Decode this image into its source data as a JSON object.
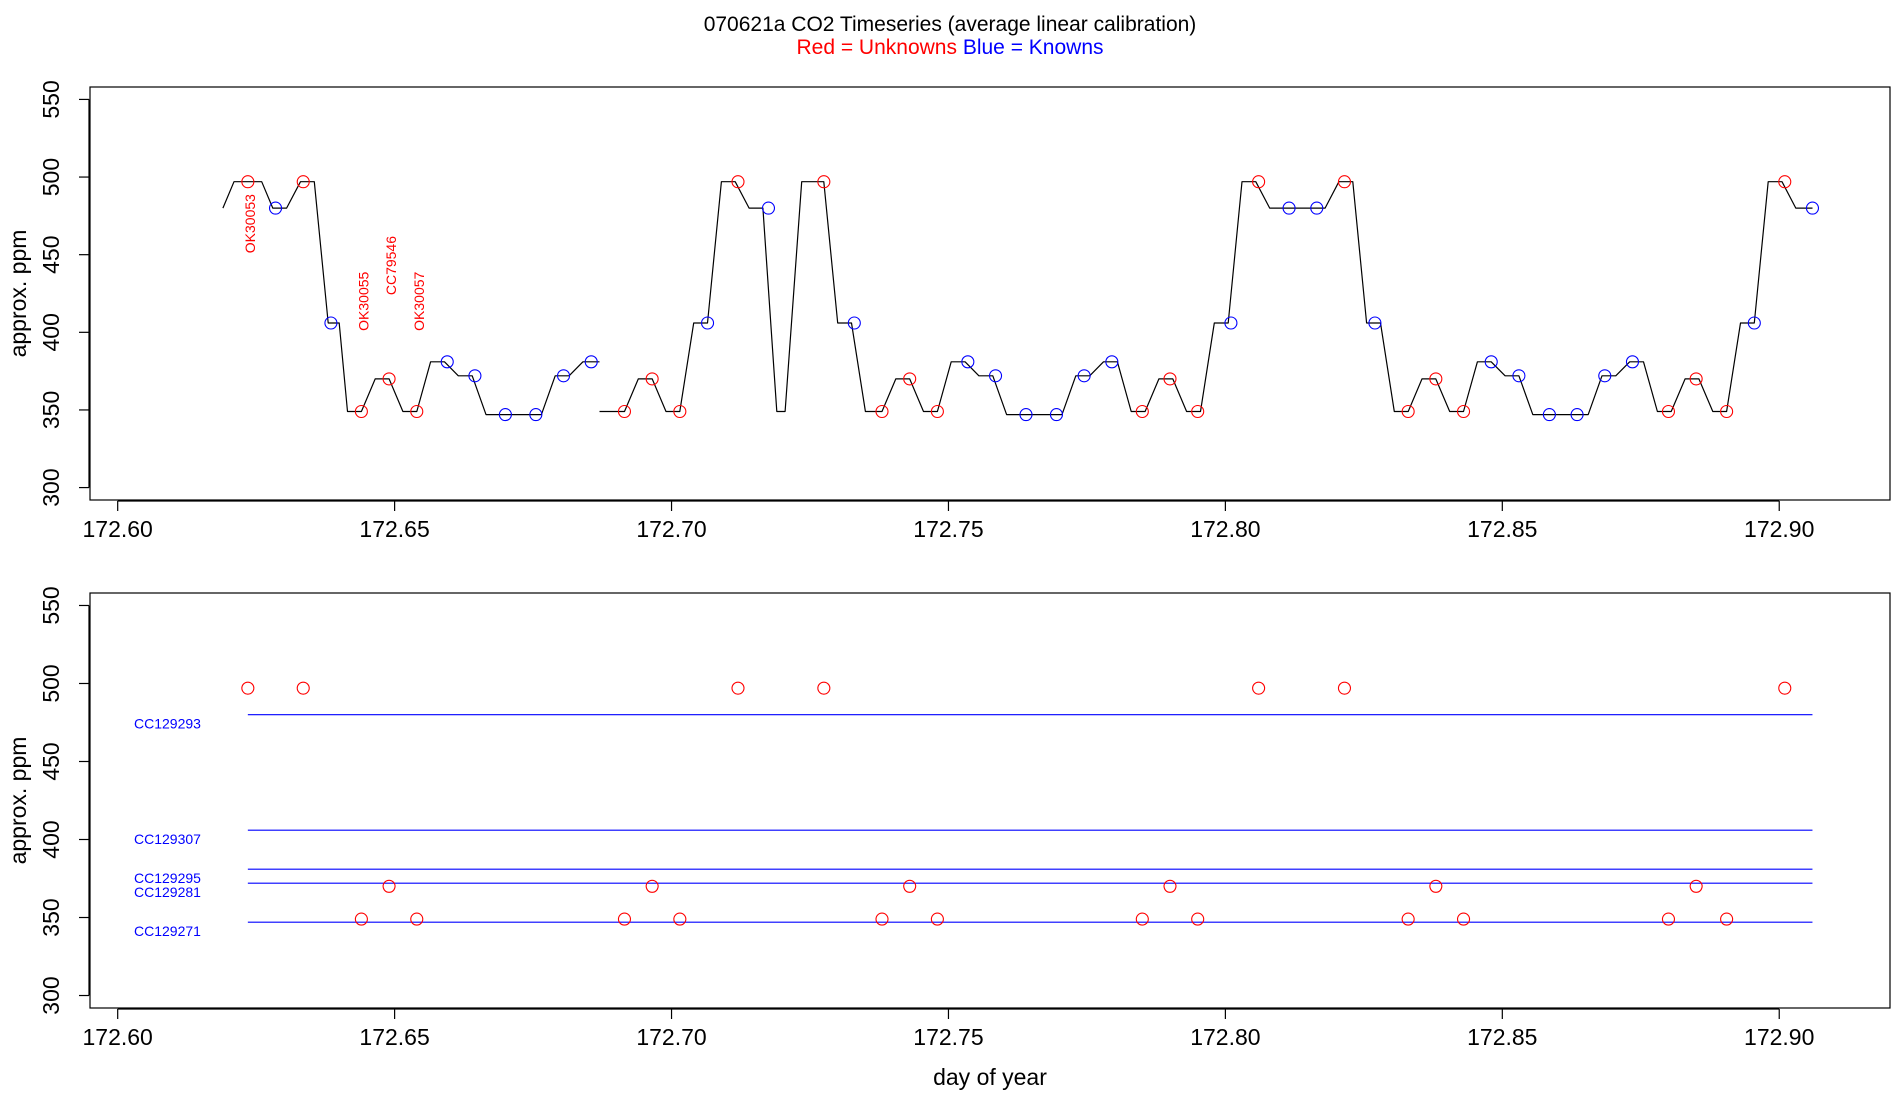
{
  "header": {
    "title": "070621a   CO2 Timeseries (average linear calibration)",
    "legend_red": "Red = Unknowns",
    "legend_blue": "Blue = Knowns"
  },
  "colors": {
    "unknown": "#ff0000",
    "known": "#0000ff",
    "trace": "#000000"
  },
  "chart_data": [
    {
      "type": "line",
      "ylabel": "approx. ppm",
      "xlabel": "",
      "xlim": [
        172.595,
        172.92
      ],
      "ylim": [
        292,
        558
      ],
      "x_ticks": [
        172.6,
        172.65,
        172.7,
        172.75,
        172.8,
        172.85,
        172.9
      ],
      "x_tick_labels": [
        "172.60",
        "172.65",
        "172.70",
        "172.75",
        "172.80",
        "172.85",
        "172.90"
      ],
      "y_ticks": [
        300,
        350,
        400,
        450,
        500,
        550
      ],
      "y_tick_labels": [
        "300",
        "350",
        "400",
        "450",
        "500",
        "550"
      ],
      "series": [
        {
          "kind": "trace",
          "x": [
            172.619,
            172.621,
            172.623,
            172.626,
            172.628,
            172.6305,
            172.633,
            172.6355,
            172.638,
            172.64,
            172.6415,
            172.644,
            172.6465,
            172.649,
            172.6515,
            172.654,
            172.6565,
            172.659,
            172.6615,
            172.664,
            172.6665,
            172.669,
            172.6715,
            172.6765,
            172.679,
            172.6815,
            172.684,
            172.687
          ],
          "y": [
            480,
            497,
            497,
            497,
            480,
            480,
            497,
            497,
            406,
            406,
            349,
            349,
            370,
            370,
            349,
            349,
            381,
            381,
            372,
            372,
            347,
            347,
            347,
            347,
            372,
            372,
            381,
            381
          ]
        },
        {
          "kind": "trace",
          "x": [
            172.687,
            172.689,
            172.6915,
            172.694,
            172.6965,
            172.699,
            172.7015,
            172.704,
            172.7065,
            172.709,
            172.7115,
            172.714,
            172.7165,
            172.719,
            172.7205,
            172.7235,
            172.725,
            172.7275,
            172.73,
            172.7325,
            172.735,
            172.738,
            172.7405,
            172.743,
            172.7455,
            172.748,
            172.7505,
            172.753,
            172.7555,
            172.758,
            172.7605,
            172.763,
            172.7655,
            172.7705,
            172.773,
            172.7755,
            172.778,
            172.7805,
            172.783,
            172.7855,
            172.788,
            172.7905,
            172.793,
            172.7955,
            172.798,
            172.8005,
            172.803,
            172.8055,
            172.808,
            172.8105,
            172.8155,
            172.818,
            172.8205,
            172.823,
            172.8255,
            172.828,
            172.8305,
            172.833,
            172.8355,
            172.838,
            172.8405,
            172.843,
            172.8455,
            172.848,
            172.8505,
            172.853,
            172.8555,
            172.858,
            172.8605,
            172.8655,
            172.868,
            172.8705,
            172.873,
            172.8755,
            172.878,
            172.8805,
            172.883,
            172.8855,
            172.888,
            172.8905,
            172.893,
            172.8955,
            172.898,
            172.9005,
            172.903,
            172.906
          ],
          "y": [
            349,
            349,
            349,
            370,
            370,
            349,
            349,
            406,
            406,
            497,
            497,
            480,
            480,
            349,
            349,
            497,
            497,
            497,
            406,
            406,
            349,
            349,
            370,
            370,
            349,
            349,
            381,
            381,
            372,
            372,
            347,
            347,
            347,
            347,
            372,
            372,
            381,
            381,
            349,
            349,
            370,
            370,
            349,
            349,
            406,
            406,
            497,
            497,
            480,
            480,
            480,
            480,
            497,
            497,
            406,
            406,
            349,
            349,
            370,
            370,
            349,
            349,
            381,
            381,
            372,
            372,
            347,
            347,
            347,
            347,
            372,
            372,
            381,
            381,
            349,
            349,
            370,
            370,
            349,
            349,
            406,
            406,
            497,
            497,
            480,
            480
          ]
        },
        {
          "kind": "unknown_points",
          "x": [
            172.6235,
            172.6335,
            172.644,
            172.649,
            172.654,
            172.6915,
            172.6965,
            172.7015,
            172.712,
            172.7275,
            172.738,
            172.743,
            172.748,
            172.785,
            172.79,
            172.795,
            172.806,
            172.8215,
            172.833,
            172.838,
            172.843,
            172.88,
            172.885,
            172.8905,
            172.901
          ],
          "y": [
            497,
            497,
            349,
            370,
            349,
            349,
            370,
            349,
            497,
            497,
            349,
            370,
            349,
            349,
            370,
            349,
            497,
            497,
            349,
            370,
            349,
            349,
            370,
            349,
            497
          ]
        },
        {
          "kind": "known_points",
          "x": [
            172.6285,
            172.6385,
            172.6595,
            172.6645,
            172.67,
            172.6755,
            172.6805,
            172.6855,
            172.7065,
            172.7175,
            172.733,
            172.7535,
            172.7585,
            172.764,
            172.7695,
            172.7745,
            172.7795,
            172.801,
            172.8115,
            172.8165,
            172.827,
            172.848,
            172.853,
            172.8585,
            172.8635,
            172.8685,
            172.8735,
            172.8955,
            172.906
          ],
          "y": [
            480,
            406,
            381,
            372,
            347,
            347,
            372,
            381,
            406,
            480,
            406,
            381,
            372,
            347,
            347,
            372,
            381,
            406,
            480,
            480,
            406,
            381,
            372,
            347,
            347,
            372,
            381,
            406,
            480
          ]
        }
      ],
      "annotations": [
        {
          "text": "OK30053",
          "x": 172.6235,
          "y": 470
        },
        {
          "text": "OK30055",
          "x": 172.644,
          "y": 420
        },
        {
          "text": "CC79546",
          "x": 172.649,
          "y": 443
        },
        {
          "text": "OK30057",
          "x": 172.654,
          "y": 420
        }
      ]
    },
    {
      "type": "scatter",
      "ylabel": "approx. ppm",
      "xlabel": "day of year",
      "xlim": [
        172.595,
        172.92
      ],
      "ylim": [
        292,
        558
      ],
      "x_ticks": [
        172.6,
        172.65,
        172.7,
        172.75,
        172.8,
        172.85,
        172.9
      ],
      "x_tick_labels": [
        "172.60",
        "172.65",
        "172.70",
        "172.75",
        "172.80",
        "172.85",
        "172.90"
      ],
      "y_ticks": [
        300,
        350,
        400,
        450,
        500,
        550
      ],
      "y_tick_labels": [
        "300",
        "350",
        "400",
        "450",
        "500",
        "550"
      ],
      "reference_lines": [
        {
          "name": "CC129293",
          "y": 480,
          "x_start": 172.6235,
          "x_end": 172.906
        },
        {
          "name": "CC129307",
          "y": 406,
          "x_start": 172.6235,
          "x_end": 172.906
        },
        {
          "name": "CC129295",
          "y": 381,
          "x_start": 172.6235,
          "x_end": 172.906
        },
        {
          "name": "CC129281",
          "y": 372,
          "x_start": 172.6235,
          "x_end": 172.906
        },
        {
          "name": "CC129271",
          "y": 347,
          "x_start": 172.6235,
          "x_end": 172.906
        }
      ],
      "series": [
        {
          "kind": "unknown_points",
          "x": [
            172.6235,
            172.6335,
            172.644,
            172.649,
            172.654,
            172.6915,
            172.6965,
            172.7015,
            172.712,
            172.7275,
            172.738,
            172.743,
            172.748,
            172.785,
            172.79,
            172.795,
            172.806,
            172.8215,
            172.833,
            172.838,
            172.843,
            172.88,
            172.885,
            172.8905,
            172.901
          ],
          "y": [
            497,
            497,
            349,
            370,
            349,
            349,
            370,
            349,
            497,
            497,
            349,
            370,
            349,
            349,
            370,
            349,
            497,
            497,
            349,
            370,
            349,
            349,
            370,
            349,
            497
          ]
        }
      ]
    }
  ]
}
